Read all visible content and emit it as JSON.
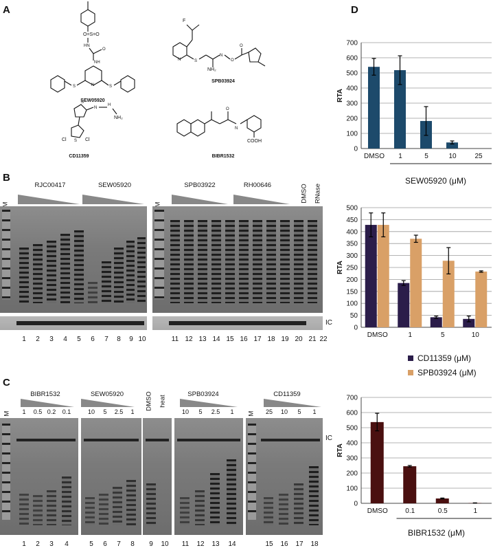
{
  "panels": {
    "a": "A",
    "b": "B",
    "c": "C",
    "d": "D"
  },
  "compounds": {
    "sew": "SEW05920",
    "spb": "SPB03924",
    "cd": "CD11359",
    "bibr": "BIBR1532",
    "cf3": "F",
    "nh2": "NH₂",
    "cooh": "COOH",
    "cl": "Cl"
  },
  "gel_b": {
    "ladder_label": "M",
    "groups": [
      "RJC00417",
      "SEW05920",
      "SPB03922",
      "RH00646"
    ],
    "dmso": "DMSO",
    "rnase": "RNase",
    "ic_label": "IC",
    "lanes": [
      "1",
      "2",
      "3",
      "4",
      "5",
      "6",
      "7",
      "8",
      "9",
      "10",
      "11",
      "12",
      "13",
      "14",
      "15",
      "16",
      "17",
      "18",
      "19",
      "20",
      "21",
      "22"
    ]
  },
  "gel_c": {
    "ladder_label": "M",
    "groups": [
      "BIBR1532",
      "SEW05920",
      "SPB03924",
      "CD11359"
    ],
    "dmso": "DMSO",
    "heat": "heat",
    "ic_label": "IC",
    "conc_bibr": [
      "1",
      "0.5",
      "0.2",
      "0.1"
    ],
    "conc_sew": [
      "10",
      "5",
      "2.5",
      "1"
    ],
    "conc_spb": [
      "10",
      "5",
      "2.5",
      "1"
    ],
    "conc_cd": [
      "25",
      "10",
      "5",
      "1"
    ],
    "lanes": [
      "1",
      "2",
      "3",
      "4",
      "5",
      "6",
      "7",
      "8",
      "9",
      "10",
      "11",
      "12",
      "13",
      "14",
      "15",
      "16",
      "17",
      "18"
    ]
  },
  "chart_data": [
    {
      "type": "bar",
      "ylabel": "RTA",
      "xlabel": "SEW05920 (μM)",
      "categories": [
        "DMSO",
        "1",
        "5",
        "10",
        "25"
      ],
      "values": [
        540,
        518,
        182,
        40,
        0
      ],
      "errors": [
        55,
        95,
        95,
        10,
        0
      ],
      "ylim": [
        0,
        700
      ],
      "yticks": [
        0,
        100,
        200,
        300,
        400,
        500,
        600,
        700
      ],
      "grid": true,
      "color": "#1d4a6b"
    },
    {
      "type": "bar",
      "ylabel": "RTA",
      "categories": [
        "DMSO",
        "1",
        "5",
        "10"
      ],
      "series": [
        {
          "name": "CD11359 (μM)",
          "values": [
            428,
            185,
            42,
            35
          ],
          "errors": [
            50,
            10,
            5,
            12
          ],
          "color": "#2b1d4a"
        },
        {
          "name": "SPB03924 (μM)",
          "values": [
            428,
            370,
            278,
            233
          ],
          "errors": [
            50,
            15,
            55,
            3
          ],
          "color": "#d9a067"
        }
      ],
      "ylim": [
        0,
        500
      ],
      "yticks": [
        0,
        50,
        100,
        150,
        200,
        250,
        300,
        350,
        400,
        450,
        500
      ],
      "grid": true,
      "legend": "bottom"
    },
    {
      "type": "bar",
      "ylabel": "RTA",
      "xlabel": "BIBR1532 (μM)",
      "categories": [
        "DMSO",
        "0.1",
        "0.5",
        "1"
      ],
      "values": [
        537,
        245,
        32,
        2
      ],
      "errors": [
        58,
        5,
        3,
        1
      ],
      "ylim": [
        0,
        700
      ],
      "yticks": [
        0,
        100,
        200,
        300,
        400,
        500,
        600,
        700
      ],
      "grid": true,
      "color": "#4a1010"
    }
  ]
}
